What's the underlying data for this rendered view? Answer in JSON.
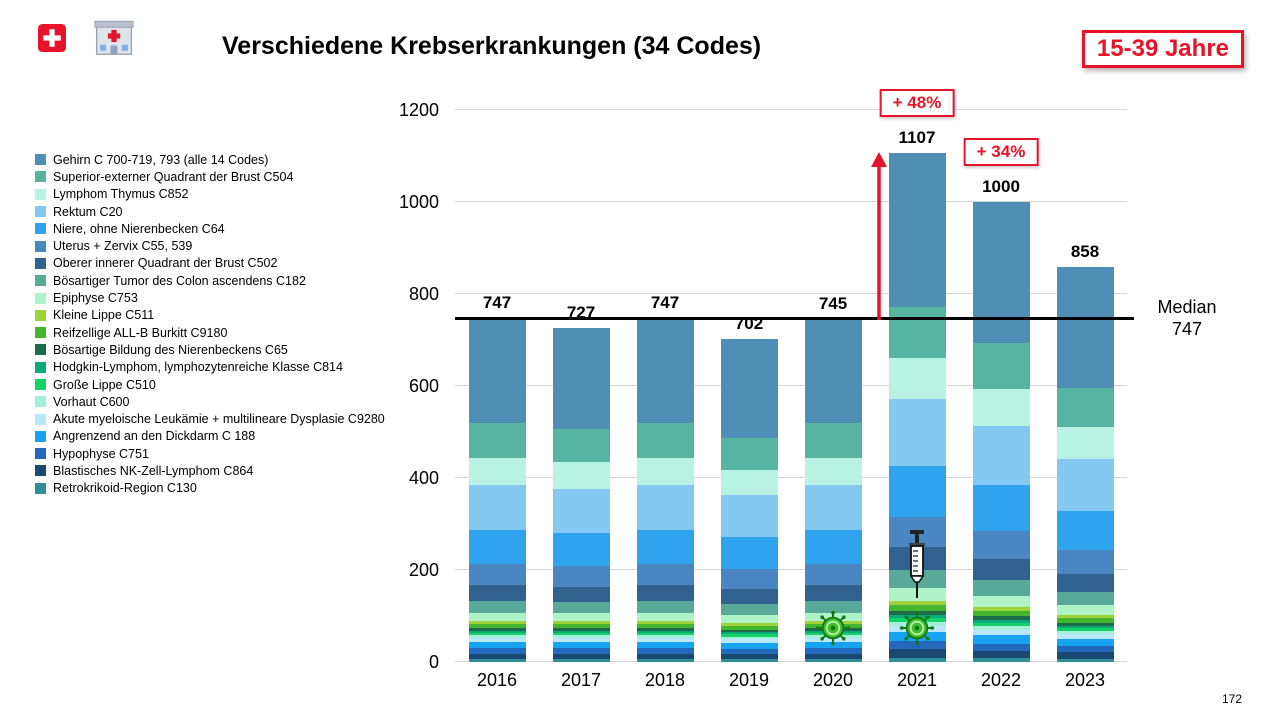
{
  "accent_color": "#e7132a",
  "header": {
    "title": "Verschiedene Krebserkrankungen (34 Codes)",
    "age_badge": "15-39 Jahre",
    "icons": [
      "swiss-flag",
      "hospital"
    ]
  },
  "footer": {
    "page_number": "172"
  },
  "chart_data": {
    "type": "bar",
    "stacked": true,
    "title": "Verschiedene Krebserkrankungen (34 Codes)",
    "categories": [
      "2016",
      "2017",
      "2018",
      "2019",
      "2020",
      "2021",
      "2022",
      "2023"
    ],
    "totals": [
      747,
      727,
      747,
      702,
      745,
      1107,
      1000,
      858
    ],
    "ylim": [
      0,
      1200
    ],
    "yticks": [
      0,
      200,
      400,
      600,
      800,
      1000,
      1200
    ],
    "grid": true,
    "legend_position": "left",
    "median": {
      "label": "Median",
      "value": 747
    },
    "annotations": [
      {
        "text": "+ 48%",
        "category": "2021"
      },
      {
        "text": "+ 34%",
        "category": "2022"
      }
    ],
    "markers": [
      {
        "type": "virus",
        "category": "2020",
        "at_value": 75
      },
      {
        "type": "virus",
        "category": "2021",
        "at_value": 75
      },
      {
        "type": "syringe",
        "category": "2021",
        "at_value": 210
      }
    ],
    "series": [
      {
        "name": "Gehirn C 700-719, 793 (alle 14 Codes)",
        "color": "#4f8fb5",
        "values": [
          228,
          220,
          228,
          214,
          226,
          336,
          306,
          262
        ]
      },
      {
        "name": "Superior-externer Quadrant der Brust C504",
        "color": "#57b4a0",
        "values": [
          75,
          73,
          75,
          70,
          75,
          111,
          100,
          86
        ]
      },
      {
        "name": "Lymphom Thymus C852",
        "color": "#b7f2e3",
        "values": [
          60,
          58,
          60,
          56,
          60,
          89,
          80,
          69
        ]
      },
      {
        "name": "Rektum C20",
        "color": "#85c9f3",
        "values": [
          97,
          95,
          97,
          91,
          97,
          144,
          130,
          112
        ]
      },
      {
        "name": "Niere, ohne Nierenbecken C64",
        "color": "#2fa3ee",
        "values": [
          75,
          73,
          75,
          70,
          75,
          111,
          100,
          86
        ]
      },
      {
        "name": "Uterus + Zervix C55, 539",
        "color": "#4a86c2",
        "values": [
          45,
          44,
          45,
          42,
          45,
          66,
          60,
          51
        ]
      },
      {
        "name": "Oberer innerer Quadrant der Brust C502",
        "color": "#31618e",
        "values": [
          34,
          33,
          34,
          32,
          34,
          50,
          45,
          39
        ]
      },
      {
        "name": "Bösartiger Tumor des Colon ascendens C182",
        "color": "#58a998",
        "values": [
          26,
          25,
          26,
          25,
          26,
          39,
          35,
          30
        ]
      },
      {
        "name": "Epiphyse C753",
        "color": "#aef4c6",
        "values": [
          19,
          18,
          19,
          18,
          19,
          28,
          25,
          21
        ]
      },
      {
        "name": "Kleine Lippe C511",
        "color": "#9ed33c",
        "values": [
          6,
          6,
          6,
          6,
          6,
          9,
          8,
          7
        ]
      },
      {
        "name": "Reifzellige ALL-B Burkitt C9180",
        "color": "#43b52e",
        "values": [
          9,
          9,
          9,
          8,
          9,
          13,
          12,
          10
        ]
      },
      {
        "name": "Bösartige Bildung des Nierenbeckens C65",
        "color": "#1c6b4a",
        "values": [
          5,
          5,
          5,
          5,
          5,
          8,
          7,
          6
        ]
      },
      {
        "name": "Hodgkin-Lymphom, lymphozytenreiche Klasse C814",
        "color": "#0ba87c",
        "values": [
          5,
          5,
          5,
          5,
          5,
          8,
          7,
          6
        ]
      },
      {
        "name": "Große Lippe C510",
        "color": "#14d366",
        "values": [
          5,
          5,
          5,
          5,
          5,
          8,
          7,
          6
        ]
      },
      {
        "name": "Vorhaut C600",
        "color": "#a2f0d9",
        "values": [
          6,
          6,
          6,
          6,
          6,
          9,
          8,
          7
        ]
      },
      {
        "name": "Akute myeloische Leukämie + multilineare Dysplasie C9280",
        "color": "#b9e7fb",
        "values": [
          9,
          9,
          9,
          8,
          9,
          13,
          12,
          10
        ]
      },
      {
        "name": "Angrenzend an den Dickdarm C 188",
        "color": "#17a3f0",
        "values": [
          13,
          13,
          13,
          13,
          13,
          20,
          18,
          15
        ]
      },
      {
        "name": "Hypophyse C751",
        "color": "#2269bb",
        "values": [
          12,
          12,
          12,
          11,
          12,
          18,
          16,
          14
        ]
      },
      {
        "name": "Blastisches NK-Zell-Lymphom C864",
        "color": "#1a4a73",
        "values": [
          12,
          12,
          12,
          11,
          12,
          18,
          16,
          14
        ]
      },
      {
        "name": "Retrokrikoid-Region C130",
        "color": "#2f8e96",
        "values": [
          6,
          6,
          6,
          6,
          6,
          9,
          8,
          7
        ]
      }
    ]
  }
}
